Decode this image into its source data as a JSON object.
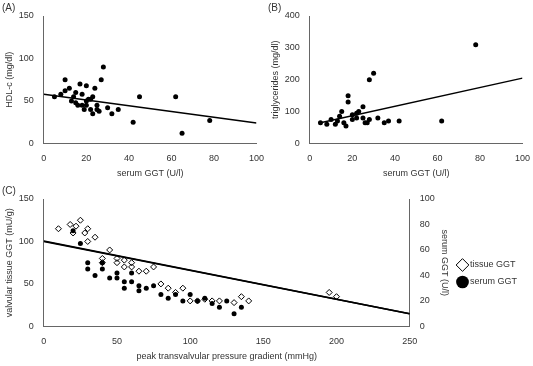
{
  "chart_data": [
    {
      "type": "scatter",
      "title": "(A)",
      "x_label": "serum GGT (U/l)",
      "y_label": "HDL-c (mg/dl)",
      "xlim": [
        0,
        100
      ],
      "xticks": [
        0,
        20,
        40,
        60,
        80,
        100
      ],
      "ylim": [
        0,
        150
      ],
      "yticks": [
        0,
        50,
        100,
        150
      ],
      "grid": false,
      "series": [
        {
          "type": "scatter",
          "marker": "circle",
          "color": "#000000",
          "x": [
            5,
            8,
            10,
            10,
            12,
            13,
            14,
            15,
            15,
            16,
            17,
            18,
            18,
            19,
            20,
            20,
            20,
            21,
            22,
            22,
            23,
            23,
            24,
            25,
            25,
            26,
            27,
            28,
            30,
            32,
            35,
            42,
            45,
            62,
            65,
            78
          ],
          "values": [
            55,
            58,
            62,
            75,
            65,
            50,
            55,
            60,
            48,
            45,
            70,
            58,
            45,
            40,
            50,
            45,
            68,
            52,
            52,
            40,
            35,
            55,
            65,
            45,
            40,
            38,
            75,
            90,
            42,
            35,
            40,
            25,
            55,
            55,
            12,
            27
          ]
        },
        {
          "type": "line",
          "line_style": "solid",
          "color": "#000000",
          "x": [
            0,
            100
          ],
          "values": [
            58,
            24
          ]
        }
      ]
    },
    {
      "type": "scatter",
      "title": "(B)",
      "x_label": "serum GGT (U/l)",
      "y_label": "triglycerides (mg/dl)",
      "xlim": [
        0,
        100
      ],
      "xticks": [
        0,
        20,
        40,
        60,
        80,
        100
      ],
      "ylim": [
        0,
        400
      ],
      "yticks": [
        0,
        100,
        200,
        300,
        400
      ],
      "grid": false,
      "series": [
        {
          "type": "scatter",
          "marker": "circle",
          "color": "#000000",
          "x": [
            5,
            8,
            10,
            12,
            13,
            14,
            15,
            16,
            17,
            18,
            18,
            20,
            20,
            22,
            22,
            23,
            25,
            25,
            26,
            27,
            28,
            28,
            30,
            32,
            35,
            37,
            42,
            62,
            78
          ],
          "values": [
            65,
            60,
            75,
            60,
            70,
            85,
            100,
            65,
            55,
            150,
            130,
            75,
            90,
            80,
            95,
            100,
            115,
            80,
            65,
            65,
            75,
            200,
            220,
            80,
            65,
            70,
            70,
            70,
            310
          ]
        },
        {
          "type": "line",
          "line_style": "solid",
          "color": "#000000",
          "x": [
            5,
            100
          ],
          "values": [
            65,
            205
          ]
        }
      ]
    },
    {
      "type": "scatter",
      "title": "(C)",
      "x_label": "peak transvalvular pressure gradient (mmHg)",
      "y_label": "valvular tissue GGT (mU/g)",
      "y2_label": "serum GGT (U/l)",
      "xlim": [
        0,
        250
      ],
      "xticks": [
        0,
        50,
        100,
        150,
        200,
        250
      ],
      "ylim": [
        0,
        150
      ],
      "yticks": [
        0,
        50,
        100,
        150
      ],
      "y2lim": [
        0,
        100
      ],
      "y2ticks": [
        0,
        20,
        40,
        60,
        80,
        100
      ],
      "grid": false,
      "legend": "right",
      "series": [
        {
          "name": "tissue GGT",
          "type": "scatter",
          "marker": "diamond-open",
          "color": "#000000",
          "x": [
            10,
            18,
            20,
            22,
            25,
            28,
            30,
            30,
            35,
            40,
            40,
            45,
            50,
            50,
            55,
            55,
            60,
            60,
            65,
            70,
            75,
            80,
            85,
            90,
            95,
            100,
            105,
            110,
            115,
            120,
            130,
            135,
            140,
            195,
            200
          ],
          "values": [
            115,
            120,
            110,
            118,
            125,
            110,
            100,
            115,
            105,
            80,
            75,
            90,
            75,
            80,
            78,
            70,
            70,
            75,
            65,
            65,
            70,
            50,
            45,
            40,
            45,
            30,
            30,
            32,
            30,
            30,
            28,
            35,
            30,
            40,
            35
          ]
        },
        {
          "name": "serum GGT",
          "type": "scatter",
          "marker": "circle",
          "color": "#000000",
          "axis": "y2",
          "x": [
            20,
            25,
            30,
            30,
            35,
            40,
            40,
            45,
            50,
            50,
            55,
            55,
            60,
            60,
            65,
            65,
            70,
            75,
            80,
            85,
            90,
            95,
            100,
            105,
            110,
            115,
            120,
            125,
            130,
            135
          ],
          "values": [
            75,
            65,
            50,
            45,
            40,
            50,
            45,
            38,
            42,
            38,
            35,
            30,
            42,
            35,
            32,
            28,
            30,
            32,
            25,
            22,
            25,
            20,
            25,
            20,
            22,
            18,
            15,
            20,
            10,
            15
          ]
        },
        {
          "type": "line",
          "line_style": "solid",
          "color": "#000000",
          "x": [
            0,
            250
          ],
          "values": [
            100,
            15
          ]
        },
        {
          "type": "line",
          "line_style": "solid",
          "color": "#000000",
          "axis": "y2",
          "x": [
            0,
            250
          ],
          "values": [
            67,
            10
          ]
        }
      ]
    }
  ]
}
